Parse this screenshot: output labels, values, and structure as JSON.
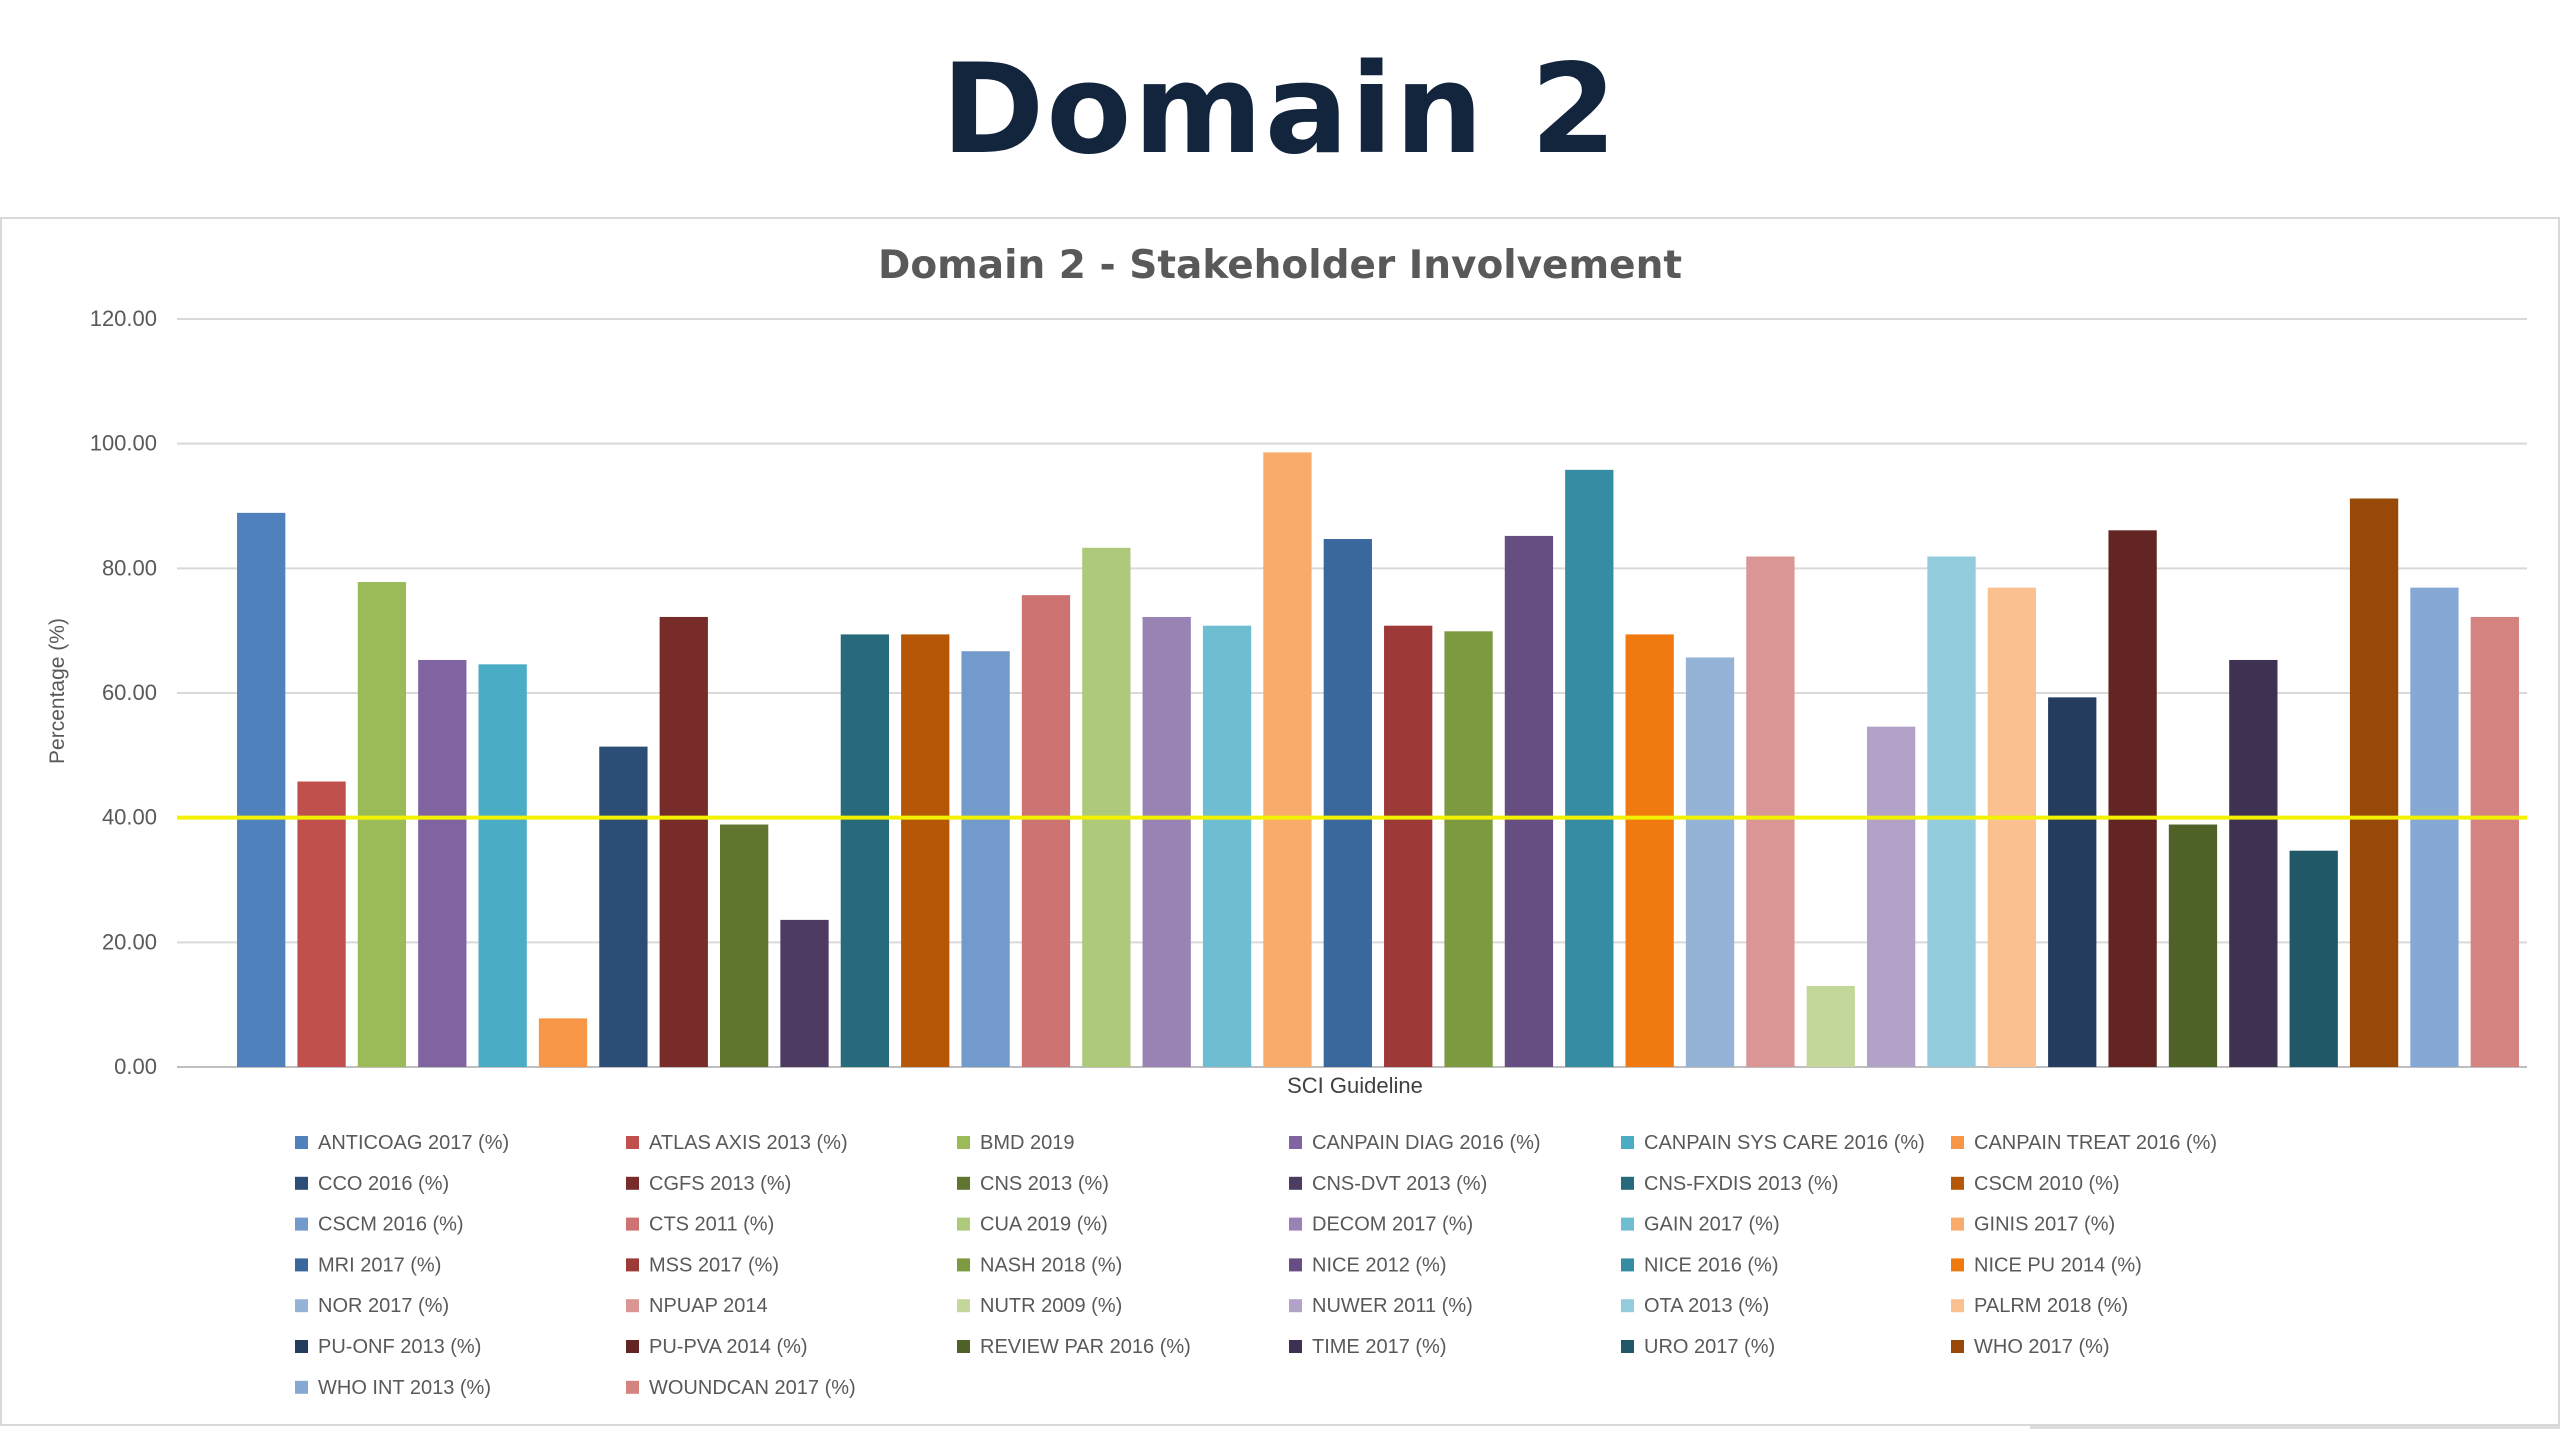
{
  "page": {
    "title": "Domain 2"
  },
  "chart_data": {
    "type": "bar",
    "title": "Domain 2 - Stakeholder Involvement",
    "xlabel": "SCI Guideline",
    "ylabel": "Percentage (%)",
    "ylim": [
      0,
      120
    ],
    "yticks": [
      "0.00",
      "20.00",
      "40.00",
      "60.00",
      "80.00",
      "100.00",
      "120.00"
    ],
    "grid": true,
    "legend_position": "bottom",
    "threshold": {
      "value": 40,
      "color": "#f2f200"
    },
    "series": [
      {
        "name": "ANTICOAG 2017 (%)",
        "value": 88.9,
        "color": "#4f81bd"
      },
      {
        "name": "ATLAS AXIS 2013 (%)",
        "value": 45.8,
        "color": "#c0504d"
      },
      {
        "name": "BMD 2019",
        "value": 77.8,
        "color": "#9bbb59"
      },
      {
        "name": "CANPAIN DIAG 2016 (%)",
        "value": 65.3,
        "color": "#8064a2"
      },
      {
        "name": "CANPAIN SYS CARE 2016 (%)",
        "value": 64.6,
        "color": "#4bacc6"
      },
      {
        "name": "CANPAIN TREAT 2016 (%)",
        "value": 7.8,
        "color": "#f79646"
      },
      {
        "name": "CCO 2016 (%)",
        "value": 51.4,
        "color": "#2c4d75"
      },
      {
        "name": "CGFS 2013 (%)",
        "value": 72.2,
        "color": "#772c2a"
      },
      {
        "name": "CNS 2013 (%)",
        "value": 38.9,
        "color": "#5f7530"
      },
      {
        "name": "CNS-DVT 2013 (%)",
        "value": 23.6,
        "color": "#4d3b62"
      },
      {
        "name": "CNS-FXDIS 2013 (%)",
        "value": 69.4,
        "color": "#276a7c"
      },
      {
        "name": "CSCM 2010 (%)",
        "value": 69.4,
        "color": "#b65708"
      },
      {
        "name": "CSCM 2016 (%)",
        "value": 66.7,
        "color": "#729aca"
      },
      {
        "name": "CTS 2011 (%)",
        "value": 75.7,
        "color": "#cd7371"
      },
      {
        "name": "CUA 2019 (%)",
        "value": 83.3,
        "color": "#afc97a"
      },
      {
        "name": "DECOM 2017 (%)",
        "value": 72.2,
        "color": "#9983b5"
      },
      {
        "name": "GAIN 2017 (%)",
        "value": 70.8,
        "color": "#6fbdd1"
      },
      {
        "name": "GINIS 2017 (%)",
        "value": 98.6,
        "color": "#f9ab6b"
      },
      {
        "name": "MRI 2017 (%)",
        "value": 84.7,
        "color": "#3a679c"
      },
      {
        "name": "MSS 2017 (%)",
        "value": 70.8,
        "color": "#9d3a38"
      },
      {
        "name": "NASH 2018  (%)",
        "value": 69.9,
        "color": "#7e9a40"
      },
      {
        "name": "NICE 2012  (%)",
        "value": 85.2,
        "color": "#664e82"
      },
      {
        "name": "NICE 2016  (%)",
        "value": 95.8,
        "color": "#358ca3"
      },
      {
        "name": "NICE PU 2014  (%)",
        "value": 69.4,
        "color": "#f07a10"
      },
      {
        "name": "NOR 2017  (%)",
        "value": 65.7,
        "color": "#95b3d7"
      },
      {
        "name": "NPUAP 2014",
        "value": 81.9,
        "color": "#d99694"
      },
      {
        "name": "NUTR 2009  (%)",
        "value": 13.0,
        "color": "#c4d79b"
      },
      {
        "name": "NUWER 2011 (%)",
        "value": 54.6,
        "color": "#b2a2c7"
      },
      {
        "name": "OTA 2013 (%)",
        "value": 81.9,
        "color": "#93cddd"
      },
      {
        "name": "PALRM 2018 (%)",
        "value": 76.9,
        "color": "#fac08f"
      },
      {
        "name": "PU-ONF 2013 (%)",
        "value": 59.3,
        "color": "#243c5d"
      },
      {
        "name": "PU-PVA 2014 (%)",
        "value": 86.1,
        "color": "#632523"
      },
      {
        "name": "REVIEW PAR 2016 (%)",
        "value": 38.9,
        "color": "#4f6228"
      },
      {
        "name": "TIME 2017 (%)",
        "value": 65.3,
        "color": "#3f3151"
      },
      {
        "name": "URO 2017 (%)",
        "value": 34.7,
        "color": "#215867"
      },
      {
        "name": "WHO 2017 (%)",
        "value": 91.2,
        "color": "#984807"
      },
      {
        "name": "WHO INT 2013 (%)",
        "value": 76.9,
        "color": "#86a8d4"
      },
      {
        "name": "WOUNDCAN 2017 (%)",
        "value": 72.2,
        "color": "#d48380"
      }
    ]
  }
}
